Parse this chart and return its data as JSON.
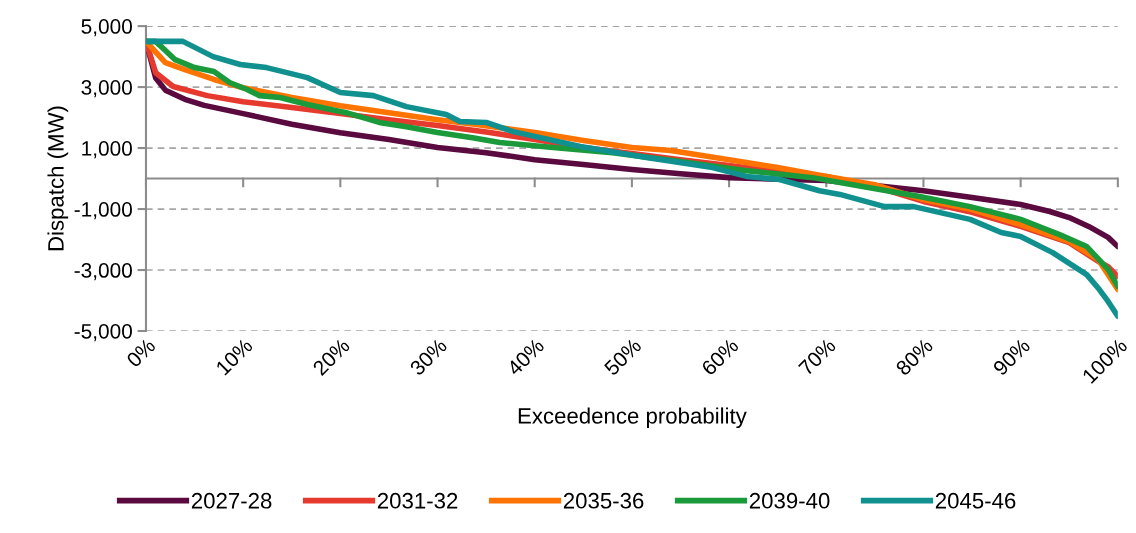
{
  "chart_data": {
    "type": "line",
    "xlabel": "Exceedence probability",
    "ylabel": "Dispatch (MW)",
    "xlim": [
      0,
      100
    ],
    "ylim": [
      -5000,
      5000
    ],
    "xticks": [
      {
        "value": 0,
        "label": "0%"
      },
      {
        "value": 10,
        "label": "10%"
      },
      {
        "value": 20,
        "label": "20%"
      },
      {
        "value": 30,
        "label": "30%"
      },
      {
        "value": 40,
        "label": "40%"
      },
      {
        "value": 50,
        "label": "50%"
      },
      {
        "value": 60,
        "label": "60%"
      },
      {
        "value": 70,
        "label": "70%"
      },
      {
        "value": 80,
        "label": "80%"
      },
      {
        "value": 90,
        "label": "90%"
      },
      {
        "value": 100,
        "label": "100%"
      }
    ],
    "yticks": [
      {
        "value": -5000,
        "label": "-5,000"
      },
      {
        "value": -3000,
        "label": "-3,000"
      },
      {
        "value": -1000,
        "label": "-1,000"
      },
      {
        "value": 1000,
        "label": "1,000"
      },
      {
        "value": 3000,
        "label": "3,000"
      },
      {
        "value": 5000,
        "label": "5,000"
      }
    ],
    "grid": "y",
    "legend": "bottom",
    "marker": "none",
    "line_style": "solid",
    "ref_lines": [
      {
        "axis": "y",
        "value": 0,
        "label": null,
        "color": "#8c8c8c",
        "line_style": "solid"
      }
    ],
    "series": [
      {
        "name": "2027-28",
        "color": "#5a0a3f",
        "x": [
          0,
          1,
          2,
          4,
          6,
          10,
          15,
          20,
          25,
          30,
          35,
          40,
          45,
          50,
          55,
          60,
          65,
          70,
          75,
          80,
          85,
          90,
          93,
          95,
          97,
          99,
          100
        ],
        "values": [
          4500,
          3300,
          2900,
          2600,
          2400,
          2130,
          1780,
          1500,
          1280,
          1020,
          850,
          620,
          460,
          300,
          160,
          30,
          -20,
          -60,
          -230,
          -400,
          -620,
          -850,
          -1080,
          -1280,
          -1570,
          -1930,
          -2230
        ]
      },
      {
        "name": "2031-32",
        "color": "#e63a2e",
        "x": [
          0,
          1,
          2.8,
          6.3,
          10,
          15,
          20,
          25,
          30,
          35,
          40,
          45,
          50,
          55,
          60,
          65,
          70,
          75,
          80,
          85,
          90,
          95,
          98,
          99,
          100
        ],
        "values": [
          4500,
          3470,
          3020,
          2720,
          2520,
          2330,
          2130,
          1930,
          1740,
          1530,
          1280,
          1020,
          820,
          620,
          430,
          230,
          70,
          -260,
          -750,
          -1110,
          -1570,
          -2100,
          -2720,
          -2890,
          -3210
        ]
      },
      {
        "name": "2035-36",
        "color": "#ff7300",
        "x": [
          0,
          2,
          4,
          7,
          10,
          15,
          20,
          25,
          30,
          34,
          40,
          45,
          50,
          54,
          60,
          65,
          70,
          75,
          80,
          85,
          90,
          95,
          98,
          100
        ],
        "values": [
          4500,
          3800,
          3570,
          3250,
          2980,
          2660,
          2390,
          2160,
          1930,
          1770,
          1510,
          1250,
          1020,
          920,
          620,
          360,
          70,
          -200,
          -690,
          -1020,
          -1510,
          -2070,
          -2660,
          -3640
        ]
      },
      {
        "name": "2039-40",
        "color": "#1a9a3b",
        "x": [
          0,
          1,
          3,
          5,
          7,
          8.6,
          10.4,
          11.7,
          13.8,
          16.6,
          20.6,
          24,
          26.8,
          30,
          33.6,
          36.4,
          41.9,
          48,
          55,
          61.8,
          68.6,
          71.4,
          79.6,
          84.8,
          90,
          94,
          96.8,
          99,
          100
        ],
        "values": [
          4500,
          4500,
          3900,
          3640,
          3510,
          3150,
          2920,
          2720,
          2660,
          2430,
          2160,
          1840,
          1700,
          1510,
          1340,
          1180,
          1020,
          850,
          560,
          260,
          30,
          -130,
          -590,
          -920,
          -1340,
          -1840,
          -2230,
          -2980,
          -3540
        ]
      },
      {
        "name": "2045-46",
        "color": "#119090",
        "x": [
          0,
          3.8,
          6.9,
          9.7,
          12.4,
          16.6,
          20,
          23.4,
          26.8,
          30.9,
          32.3,
          35,
          37.8,
          44.7,
          51.5,
          58.3,
          61.8,
          65.2,
          69.3,
          71.4,
          76,
          79,
          84.8,
          88,
          90,
          93.3,
          96.8,
          98.1,
          99,
          100
        ],
        "values": [
          4500,
          4500,
          4000,
          3740,
          3640,
          3310,
          2820,
          2720,
          2360,
          2100,
          1870,
          1840,
          1540,
          1050,
          690,
          360,
          70,
          -30,
          -400,
          -520,
          -920,
          -920,
          -1340,
          -1770,
          -1900,
          -2430,
          -3150,
          -3640,
          -4030,
          -4520
        ]
      }
    ]
  }
}
